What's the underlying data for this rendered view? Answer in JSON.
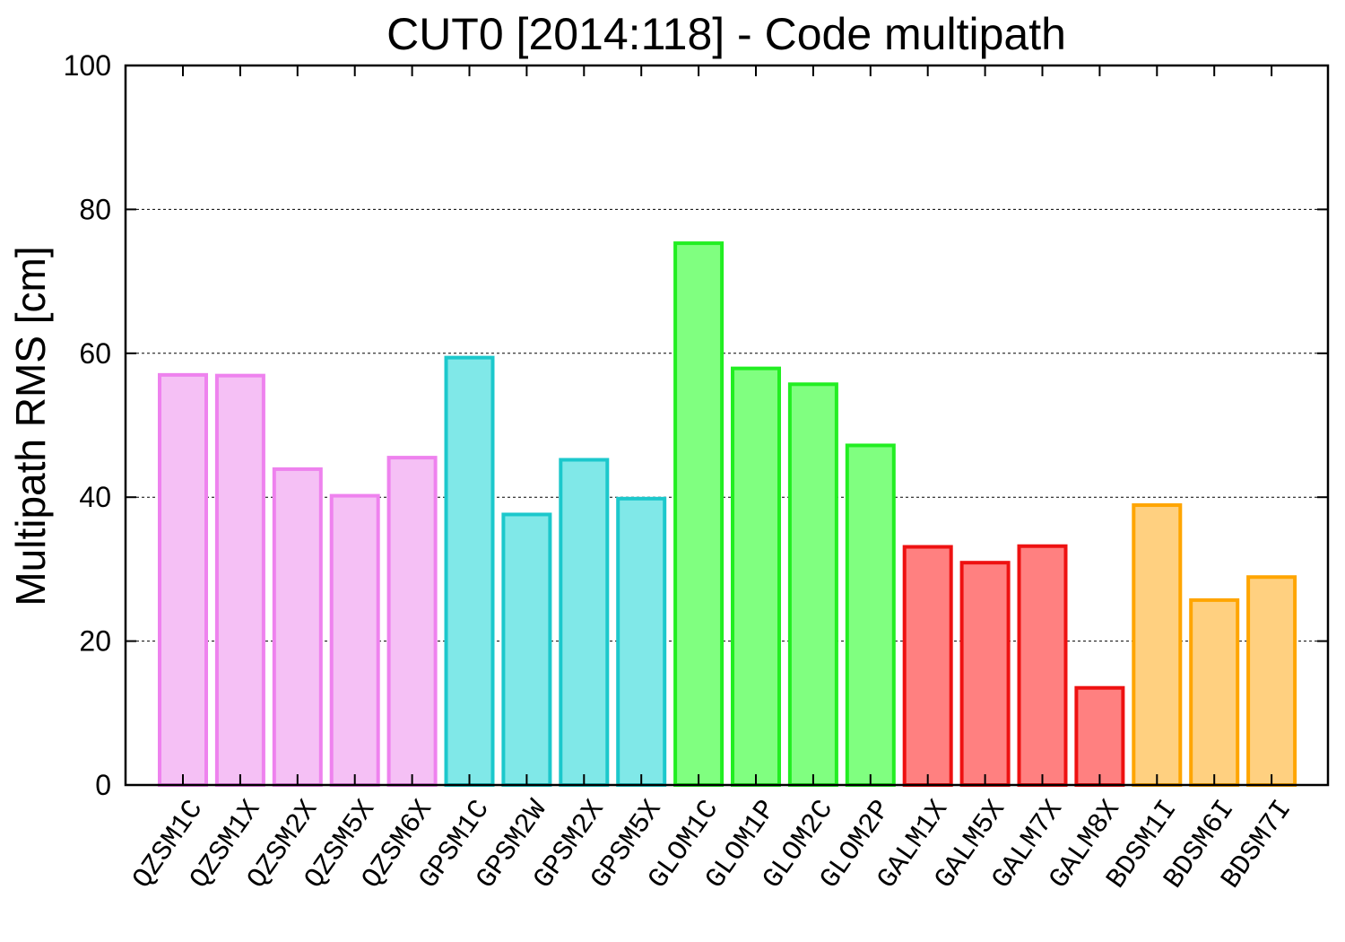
{
  "chart_data": {
    "type": "bar",
    "title": "CUT0 [2014:118] - Code multipath",
    "ylabel": "Multipath RMS [cm]",
    "xlabel": "",
    "ylim": [
      0,
      100
    ],
    "yticks": [
      "0",
      "20",
      "40",
      "60",
      "80",
      "100"
    ],
    "grid": "horizontal dashed",
    "categories": [
      "QZSM1C",
      "QZSM1X",
      "QZSM2X",
      "QZSM5X",
      "QZSM6X",
      "GPSM1C",
      "GPSM2W",
      "GPSM2X",
      "GPSM5X",
      "GLOM1C",
      "GLOM1P",
      "GLOM2C",
      "GLOM2P",
      "GALM1X",
      "GALM5X",
      "GALM7X",
      "GALM8X",
      "BDSM1I",
      "BDSM6I",
      "BDSM7I"
    ],
    "values": [
      57.0,
      56.9,
      43.9,
      40.2,
      45.5,
      59.4,
      37.6,
      45.2,
      39.8,
      75.3,
      57.9,
      55.7,
      47.2,
      33.1,
      30.9,
      33.2,
      13.5,
      38.9,
      25.7,
      28.9
    ],
    "groups": [
      "QZS",
      "QZS",
      "QZS",
      "QZS",
      "QZS",
      "GPS",
      "GPS",
      "GPS",
      "GPS",
      "GLO",
      "GLO",
      "GLO",
      "GLO",
      "GAL",
      "GAL",
      "GAL",
      "GAL",
      "BDS",
      "BDS",
      "BDS"
    ],
    "colors": {
      "QZS": {
        "stroke": "#ee82ee",
        "fill": "#f5c0f5"
      },
      "GPS": {
        "stroke": "#1cc8cc",
        "fill": "#80e8e8"
      },
      "GLO": {
        "stroke": "#22ee22",
        "fill": "#80ff80"
      },
      "GAL": {
        "stroke": "#ee1111",
        "fill": "#ff8080"
      },
      "BDS": {
        "stroke": "#ffa500",
        "fill": "#ffd080"
      }
    }
  }
}
